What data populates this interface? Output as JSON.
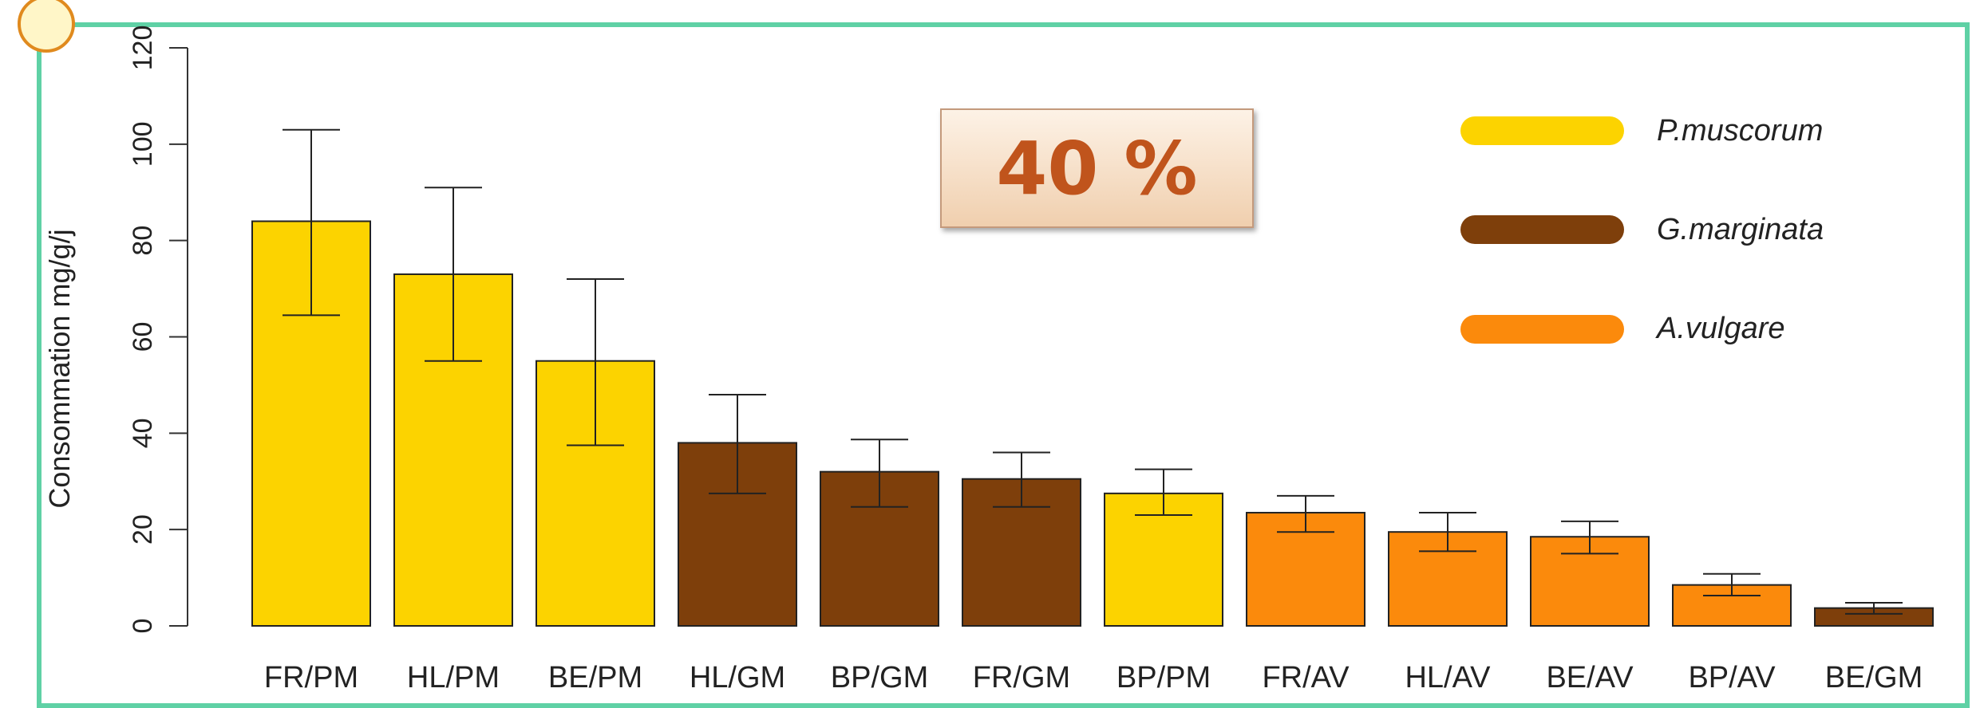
{
  "highlight_text": "40 %",
  "colors": {
    "pm": "#fcd300",
    "gm": "#7e3f0b",
    "av": "#fb8a0c",
    "frame": "#5fd1a5",
    "highlight_text": "#c0541c"
  },
  "chart_data": {
    "type": "bar",
    "title": "",
    "xlabel": "",
    "ylabel": "Consommation mg/g/j",
    "ylim": [
      0,
      120
    ],
    "yticks": [
      "0",
      "20",
      "40",
      "60",
      "80",
      "100",
      "120"
    ],
    "grid": false,
    "legend_position": "top-right",
    "legend": [
      {
        "label": "P.muscorum",
        "color_key": "pm"
      },
      {
        "label": "G.marginata",
        "color_key": "gm"
      },
      {
        "label": "A.vulgare",
        "color_key": "av"
      }
    ],
    "categories": [
      "FR/PM",
      "HL/PM",
      "BE/PM",
      "HL/GM",
      "BP/GM",
      "FR/GM",
      "BP/PM",
      "FR/AV",
      "HL/AV",
      "BE/AV",
      "BP/AV",
      "BE/GM"
    ],
    "values": [
      84,
      73,
      55,
      38,
      32,
      30.5,
      27.5,
      23.5,
      19.5,
      18.5,
      8.5,
      3.7
    ],
    "error_low": [
      64.5,
      55,
      37.5,
      27.5,
      24.7,
      24.7,
      23,
      19.5,
      15.5,
      15,
      6.3,
      2.5
    ],
    "error_high": [
      103,
      91,
      72,
      48,
      38.7,
      36,
      32.5,
      27,
      23.5,
      21.7,
      10.8,
      4.8
    ],
    "bar_series": [
      "pm",
      "pm",
      "pm",
      "gm",
      "gm",
      "gm",
      "pm",
      "av",
      "av",
      "av",
      "av",
      "gm"
    ]
  }
}
